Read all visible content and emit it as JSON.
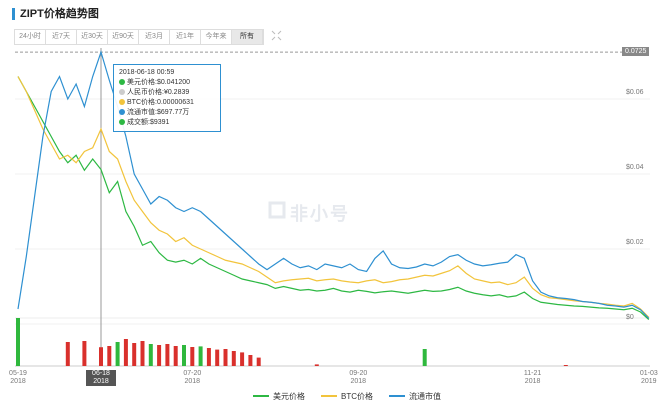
{
  "header": {
    "title": "ZIPT价格趋势图"
  },
  "tabs": {
    "items": [
      "24小时",
      "近7天",
      "近30天",
      "近90天",
      "近3月",
      "近1年",
      "今年来",
      "所有"
    ],
    "active": 7
  },
  "watermark": "非小号",
  "tooltip": {
    "date": "2018-06-18 00:59",
    "rows": [
      {
        "text": "美元价格:$0.041200",
        "color": "#2db843"
      },
      {
        "text": "人民币价格:¥0.2839",
        "color": "#cccccc"
      },
      {
        "text": "BTC价格:0.00000631",
        "color": "#f2c43c"
      },
      {
        "text": "流通市值:$697.77万",
        "color": "#2e90d1"
      },
      {
        "text": "成交额:$9391",
        "color": "#2db843"
      }
    ]
  },
  "chart_data": {
    "type": "line",
    "categories": [
      "05-19\n2018",
      null,
      null,
      null,
      null,
      null,
      null,
      null,
      null,
      null,
      "06-18\n2018",
      null,
      null,
      null,
      null,
      null,
      null,
      null,
      null,
      null,
      null,
      "07-20\n2018",
      null,
      null,
      null,
      null,
      null,
      null,
      null,
      null,
      null,
      null,
      null,
      null,
      null,
      null,
      null,
      null,
      null,
      null,
      null,
      "09-20\n2018",
      null,
      null,
      null,
      null,
      null,
      null,
      null,
      null,
      null,
      null,
      null,
      null,
      null,
      null,
      null,
      null,
      null,
      null,
      null,
      null,
      "11-21\n2018",
      null,
      null,
      null,
      null,
      null,
      null,
      null,
      null,
      null,
      null,
      null,
      null,
      null,
      "01-03\n2019"
    ],
    "series": [
      {
        "name": "美元价格",
        "color": "#2db843",
        "values": [
          0.066,
          0.062,
          0.058,
          0.054,
          0.05,
          0.046,
          0.043,
          0.045,
          0.041,
          0.044,
          0.0412,
          0.035,
          0.038,
          0.03,
          0.026,
          0.021,
          0.022,
          0.019,
          0.017,
          0.0165,
          0.017,
          0.016,
          0.0175,
          0.016,
          0.015,
          0.014,
          0.013,
          0.012,
          0.0115,
          0.011,
          0.0105,
          0.0095,
          0.01,
          0.0095,
          0.009,
          0.0092,
          0.0088,
          0.009,
          0.0095,
          0.0088,
          0.0085,
          0.009,
          0.0087,
          0.0083,
          0.0086,
          0.0088,
          0.0085,
          0.0082,
          0.0086,
          0.009,
          0.0087,
          0.0088,
          0.0092,
          0.0098,
          0.0088,
          0.0082,
          0.0078,
          0.0075,
          0.0078,
          0.0072,
          0.0075,
          0.0085,
          0.0068,
          0.0058,
          0.0055,
          0.0052,
          0.005,
          0.0048,
          0.0047,
          0.0045,
          0.0043,
          0.0042,
          0.004,
          0.0038,
          0.0042,
          0.0032,
          0.0012
        ]
      },
      {
        "name": "BTC价格",
        "color": "#f2c43c",
        "values": [
          0.066,
          0.062,
          0.057,
          0.052,
          0.048,
          0.044,
          0.045,
          0.043,
          0.046,
          0.047,
          0.052,
          0.046,
          0.044,
          0.038,
          0.033,
          0.03,
          0.027,
          0.025,
          0.024,
          0.022,
          0.023,
          0.021,
          0.02,
          0.019,
          0.018,
          0.017,
          0.0165,
          0.016,
          0.015,
          0.014,
          0.0125,
          0.011,
          0.0115,
          0.0118,
          0.012,
          0.0122,
          0.0115,
          0.0118,
          0.012,
          0.0115,
          0.0112,
          0.011,
          0.0115,
          0.0118,
          0.011,
          0.0113,
          0.0118,
          0.012,
          0.0125,
          0.013,
          0.0128,
          0.0135,
          0.0142,
          0.0155,
          0.0135,
          0.012,
          0.0115,
          0.011,
          0.0112,
          0.0105,
          0.011,
          0.0125,
          0.0095,
          0.0078,
          0.007,
          0.0068,
          0.0065,
          0.0062,
          0.006,
          0.0058,
          0.0055,
          0.0053,
          0.005,
          0.0048,
          0.0055,
          0.004,
          0.0018
        ]
      },
      {
        "name": "流通市值",
        "color": "#2e90d1",
        "values": [
          0.004,
          0.018,
          0.034,
          0.05,
          0.062,
          0.066,
          0.06,
          0.064,
          0.058,
          0.066,
          0.0725,
          0.065,
          0.058,
          0.05,
          0.04,
          0.036,
          0.032,
          0.034,
          0.033,
          0.031,
          0.03,
          0.031,
          0.03,
          0.028,
          0.026,
          0.024,
          0.022,
          0.02,
          0.018,
          0.016,
          0.0145,
          0.016,
          0.0175,
          0.016,
          0.015,
          0.0155,
          0.0145,
          0.016,
          0.0155,
          0.015,
          0.016,
          0.0145,
          0.014,
          0.0175,
          0.0195,
          0.016,
          0.015,
          0.0148,
          0.0152,
          0.016,
          0.0155,
          0.0165,
          0.018,
          0.0185,
          0.017,
          0.016,
          0.0155,
          0.0158,
          0.0162,
          0.0165,
          0.0185,
          0.0175,
          0.0115,
          0.0085,
          0.0075,
          0.007,
          0.0068,
          0.0065,
          0.006,
          0.0058,
          0.0055,
          0.005,
          0.0048,
          0.0045,
          0.005,
          0.0038,
          0.0015
        ]
      }
    ],
    "volume": [
      24000,
      0,
      0,
      0,
      0,
      0,
      12000,
      0,
      12500,
      0,
      9391,
      10000,
      12000,
      13500,
      11500,
      12500,
      11000,
      10500,
      11000,
      10000,
      10500,
      9500,
      9800,
      9000,
      8200,
      8500,
      7500,
      6800,
      5500,
      4200,
      0,
      0,
      0,
      0,
      0,
      0,
      800,
      0,
      0,
      0,
      0,
      0,
      0,
      0,
      0,
      0,
      0,
      0,
      0,
      8500,
      0,
      0,
      0,
      0,
      0,
      0,
      0,
      0,
      0,
      0,
      0,
      0,
      0,
      0,
      0,
      0,
      500,
      0,
      0,
      0,
      0,
      0,
      0,
      0,
      0,
      0,
      0
    ],
    "volume_lim": [
      0,
      24000
    ],
    "volume_colors": {
      "up": "#2fb83d",
      "down": "#d9302c"
    },
    "ylim": [
      0,
      0.0736
    ],
    "yticks": [
      {
        "value": 0,
        "label": "$0"
      },
      {
        "value": 0.02,
        "label": "$0.02"
      },
      {
        "value": 0.04,
        "label": "$0.04"
      },
      {
        "value": 0.06,
        "label": "$0.06"
      }
    ],
    "crosshair": 0.0725,
    "grid": true
  }
}
